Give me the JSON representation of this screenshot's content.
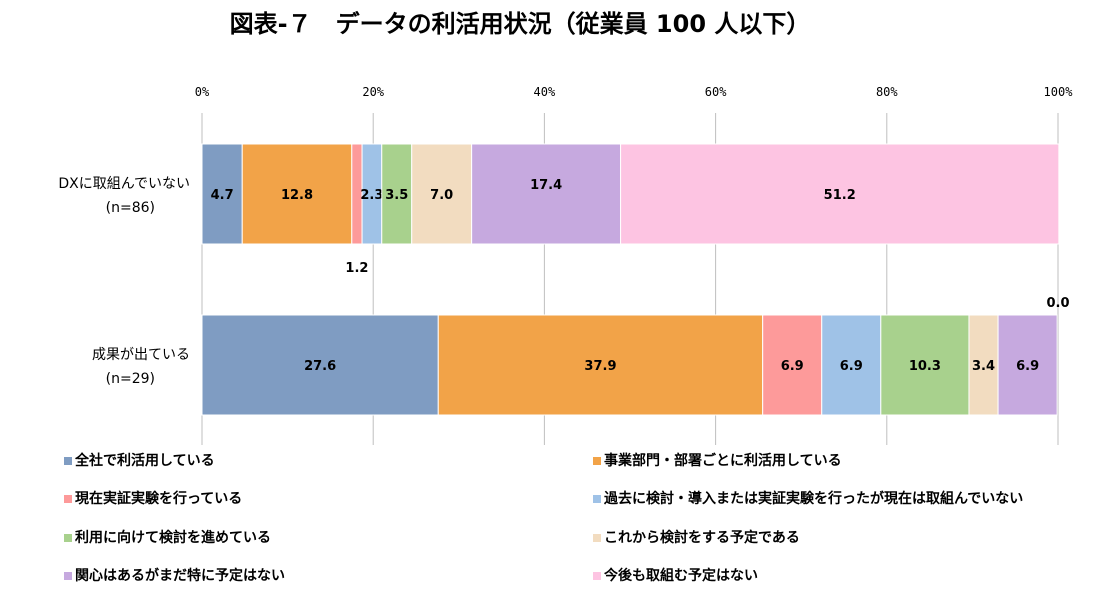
{
  "chart_data": {
    "type": "bar",
    "orientation": "horizontal",
    "stacked": "percent",
    "title": "図表-７　データの利活用状況（従業員 100 人以下）",
    "xlim": [
      0,
      100
    ],
    "xticks": [
      0,
      20,
      40,
      60,
      80,
      100
    ],
    "xtick_labels": [
      "0%",
      "20%",
      "40%",
      "60%",
      "80%",
      "100%"
    ],
    "grid": true,
    "legend_position": "bottom",
    "categories": [
      {
        "name": "DXに取組んでいない",
        "n": "(n=86)"
      },
      {
        "name": "成果が出ている",
        "n": "(n=29)"
      }
    ],
    "series": [
      {
        "name": "全社で利活用している",
        "color": "#7f9cc2",
        "values": [
          4.7,
          27.6
        ],
        "labels": [
          "4.7",
          "27.6"
        ]
      },
      {
        "name": "事業部門・部署ごとに利活用している",
        "color": "#f2a348",
        "values": [
          12.8,
          37.9
        ],
        "labels": [
          "12.8",
          "37.9"
        ]
      },
      {
        "name": "現在実証実験を行っている",
        "color": "#fd9a9a",
        "values": [
          1.2,
          6.9
        ],
        "labels": [
          "1.2",
          "6.9"
        ]
      },
      {
        "name": "過去に検討・導入または実証実験を行ったが現在は取組んでいない",
        "color": "#9fc2e7",
        "values": [
          2.3,
          6.9
        ],
        "labels": [
          "2.3",
          "6.9"
        ]
      },
      {
        "name": "利用に向けて検討を進めている",
        "color": "#a8d18d",
        "values": [
          3.5,
          10.3
        ],
        "labels": [
          "3.5",
          "10.3"
        ]
      },
      {
        "name": "これから検討をする予定である",
        "color": "#f2dcc0",
        "values": [
          7.0,
          3.4
        ],
        "labels": [
          "7.0",
          "3.4"
        ]
      },
      {
        "name": "関心はあるがまだ特に予定はない",
        "color": "#c6a9df",
        "values": [
          17.4,
          6.9
        ],
        "labels": [
          "17.4",
          "6.9"
        ]
      },
      {
        "name": "今後も取組む予定はない",
        "color": "#fdc4e2",
        "values": [
          51.2,
          0.0
        ],
        "labels": [
          "51.2",
          "0.0"
        ]
      }
    ]
  }
}
